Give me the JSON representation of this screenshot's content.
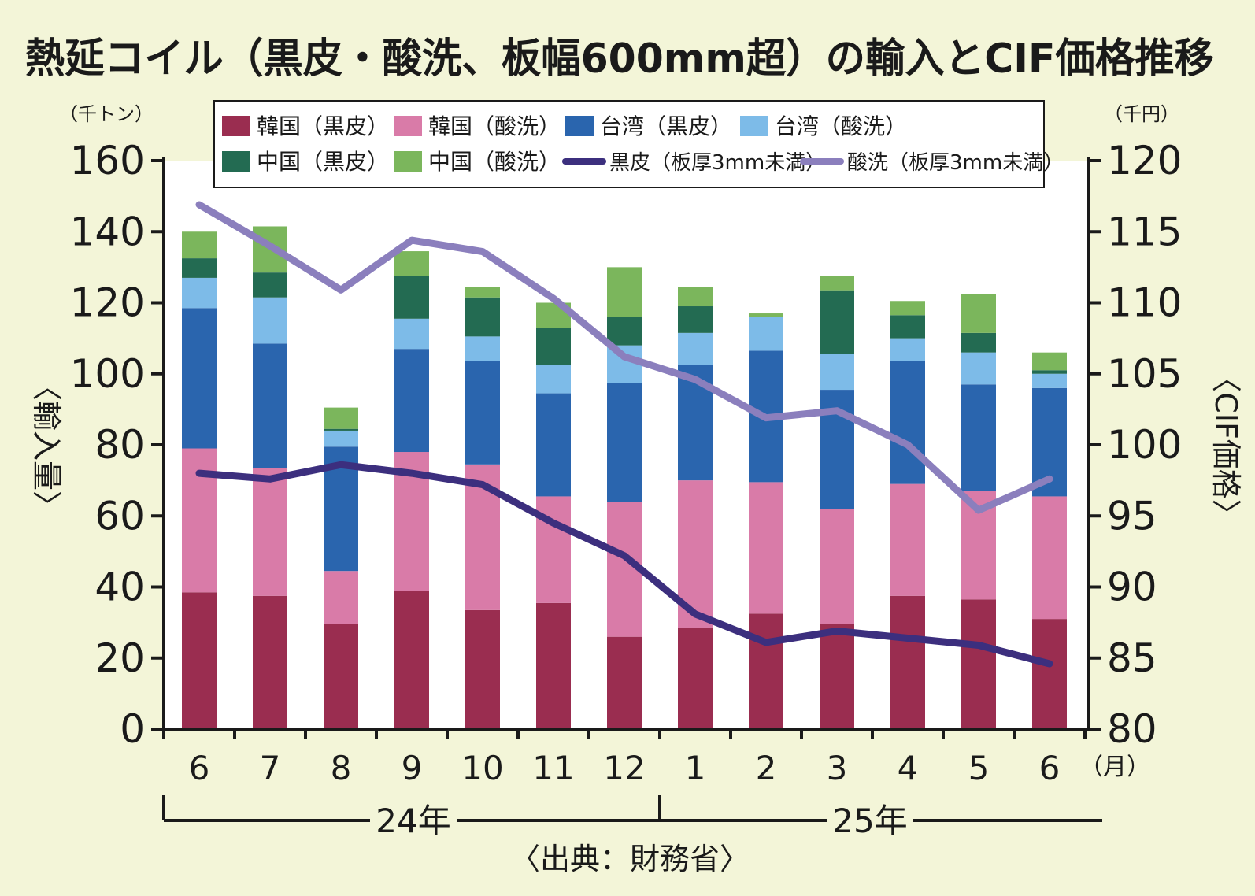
{
  "colors": {
    "background": "#f3f5d8",
    "plot_background": "#ffffff",
    "axis": "#1a1a1a",
    "text": "#1a1a1a"
  },
  "chart_data": {
    "type": "bar",
    "title": "熱延コイル（黒皮・酸洗、板幅600mm超）の輸入とCIF価格推移",
    "y_left_unit": "（千トン）",
    "y_right_unit": "（千円）",
    "y_left_label": "〈輸入量〉",
    "y_right_label": "〈CIF価格〉",
    "x_unit": "（月）",
    "source": "〈出典：財務省〉",
    "categories": [
      "6",
      "7",
      "8",
      "9",
      "10",
      "11",
      "12",
      "1",
      "2",
      "3",
      "4",
      "5",
      "6"
    ],
    "year_groups": [
      {
        "label": "24年",
        "start": 0,
        "end": 6
      },
      {
        "label": "25年",
        "start": 7,
        "end": 12
      }
    ],
    "y_left_range": [
      0,
      160
    ],
    "y_left_ticks": [
      0,
      20,
      40,
      60,
      80,
      100,
      120,
      140,
      160
    ],
    "y_right_range": [
      80,
      120
    ],
    "y_right_ticks": [
      80,
      85,
      90,
      95,
      100,
      105,
      110,
      115,
      120
    ],
    "legend_position": "top-center",
    "bar_series": [
      {
        "name": "韓国（黒皮）",
        "color": "#9a2d50",
        "values": [
          38.5,
          37.5,
          29.5,
          39,
          33.5,
          35.5,
          26,
          28.5,
          32.5,
          29.5,
          37.5,
          36.5,
          31
        ]
      },
      {
        "name": "韓国（酸洗）",
        "color": "#d97ba8",
        "values": [
          40.5,
          36,
          15,
          39,
          41,
          30,
          38,
          41.5,
          37,
          32.5,
          31.5,
          30.5,
          34.5
        ]
      },
      {
        "name": "台湾（黒皮）",
        "color": "#2a65ae",
        "values": [
          39.5,
          35,
          35,
          29,
          29,
          29,
          33.5,
          32.5,
          37,
          33.5,
          34.5,
          30,
          30.5
        ]
      },
      {
        "name": "台湾（酸洗）",
        "color": "#7dbbe8",
        "values": [
          8.5,
          13,
          4.5,
          8.5,
          7,
          8,
          10.5,
          9,
          9.5,
          10,
          6.5,
          9,
          4
        ]
      },
      {
        "name": "中国（黒皮）",
        "color": "#236b52",
        "values": [
          5.5,
          7,
          0.5,
          12,
          11,
          10.5,
          8,
          7.5,
          0,
          18,
          6.5,
          5.5,
          1
        ]
      },
      {
        "name": "中国（酸洗）",
        "color": "#7bb65c",
        "values": [
          7.5,
          13,
          6,
          7,
          3,
          7,
          14,
          5.5,
          1,
          4,
          4,
          11,
          5
        ]
      }
    ],
    "line_series": [
      {
        "name": "黒皮（板厚3mm未満）",
        "color": "#3c2f7e",
        "values": [
          98,
          97.6,
          98.6,
          98,
          97.2,
          94.5,
          92.2,
          88.1,
          86.1,
          86.9,
          86.4,
          85.9,
          84.6
        ]
      },
      {
        "name": "酸洗（板厚3mm未満）",
        "color": "#8b7fbd",
        "values": [
          116.9,
          114,
          110.9,
          114.4,
          113.6,
          110.3,
          106.2,
          104.6,
          101.9,
          102.4,
          100,
          95.4,
          97.6
        ]
      }
    ]
  }
}
